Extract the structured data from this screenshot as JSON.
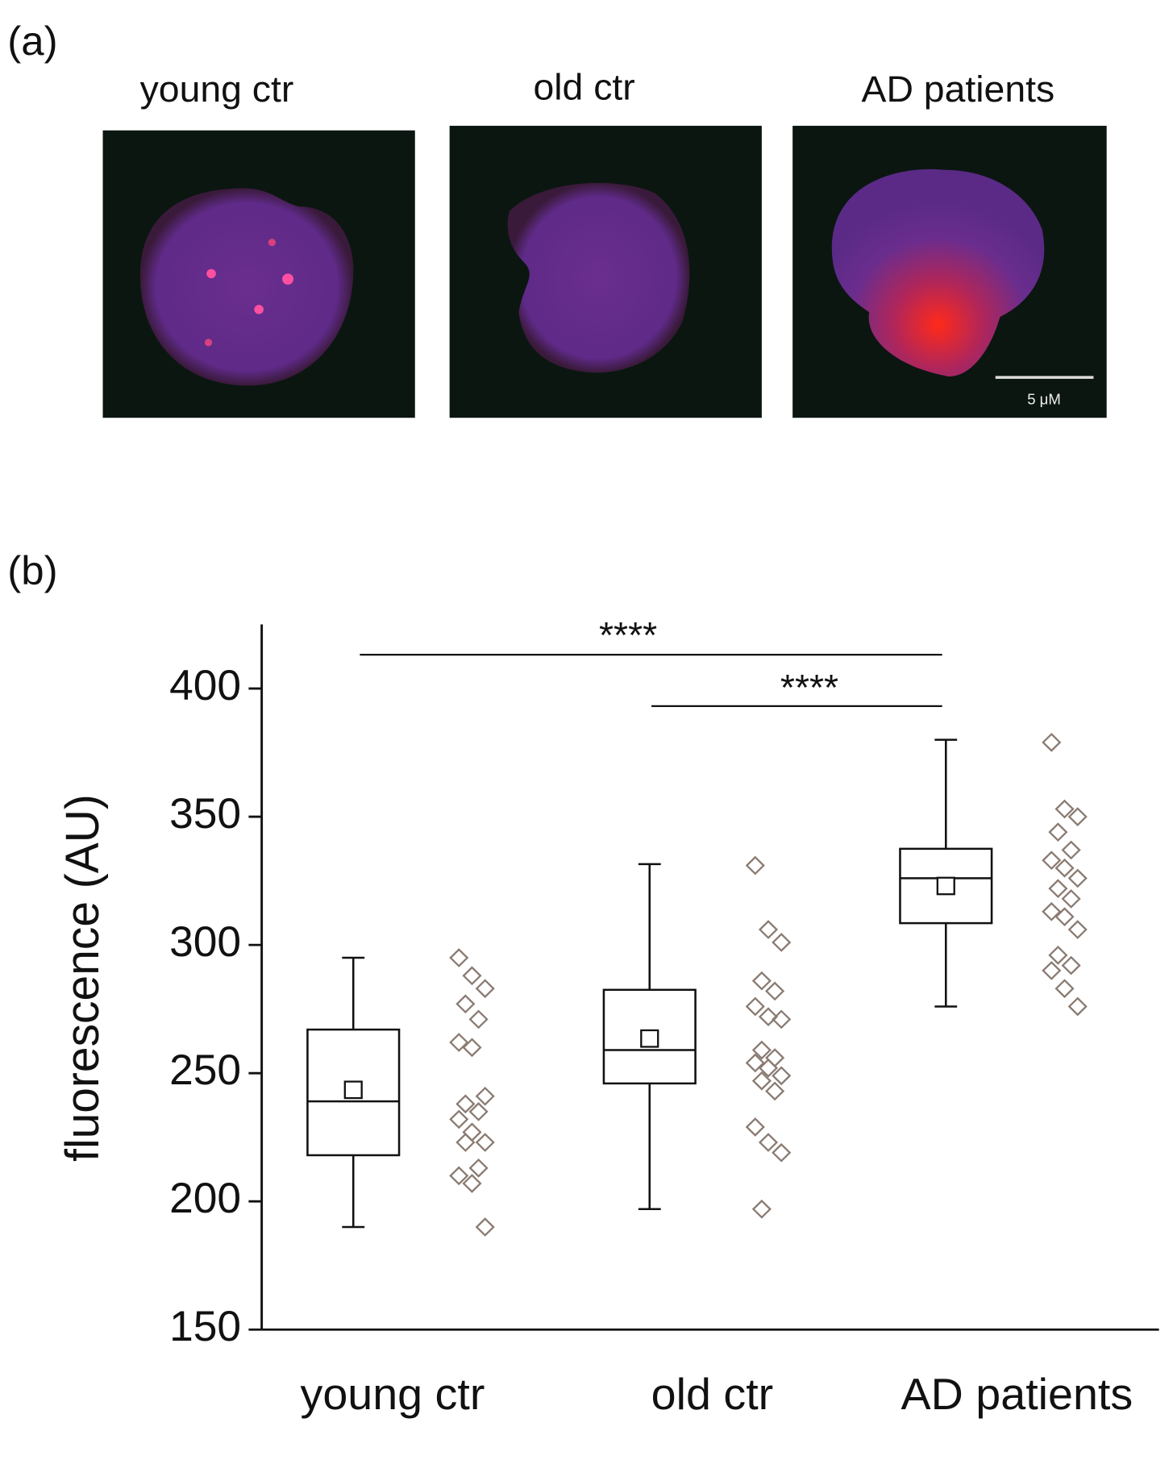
{
  "panel_a": {
    "label": "(a)",
    "images": [
      {
        "title": "young ctr"
      },
      {
        "title": "old ctr"
      },
      {
        "title": "AD patients"
      }
    ],
    "scale_bar": "5 μM"
  },
  "chart_data": {
    "type": "box",
    "panel_label": "(b)",
    "ylabel": "fluorescence (AU)",
    "categories": [
      "young ctr",
      "old ctr",
      "AD patients"
    ],
    "ylim": [
      150,
      425
    ],
    "yticks": [
      150,
      200,
      250,
      300,
      350,
      400
    ],
    "boxes": [
      {
        "whislo": 190,
        "q1": 218,
        "med": 239,
        "q3": 267,
        "whishi": 295,
        "mean": 243.5
      },
      {
        "whislo": 197,
        "q1": 246,
        "med": 259,
        "q3": 282.5,
        "whishi": 331.5,
        "mean": 263.5
      },
      {
        "whislo": 276,
        "q1": 308.5,
        "med": 326,
        "q3": 337.5,
        "whishi": 380,
        "mean": 323
      }
    ],
    "points": [
      [
        295,
        288,
        283,
        277,
        271,
        262,
        260,
        241,
        238,
        235,
        232,
        227,
        223,
        223,
        213,
        210,
        207,
        190
      ],
      [
        331,
        306,
        301,
        286,
        282,
        276,
        272,
        271,
        259,
        256,
        254,
        252,
        249,
        247,
        243,
        229,
        223,
        219,
        197
      ],
      [
        379,
        353,
        350,
        344,
        337,
        333,
        330,
        326,
        322,
        318,
        313,
        311,
        306,
        296,
        292,
        290,
        283,
        276
      ]
    ],
    "point_color": "#8a7b72",
    "annotations": [
      "****",
      "****"
    ]
  }
}
